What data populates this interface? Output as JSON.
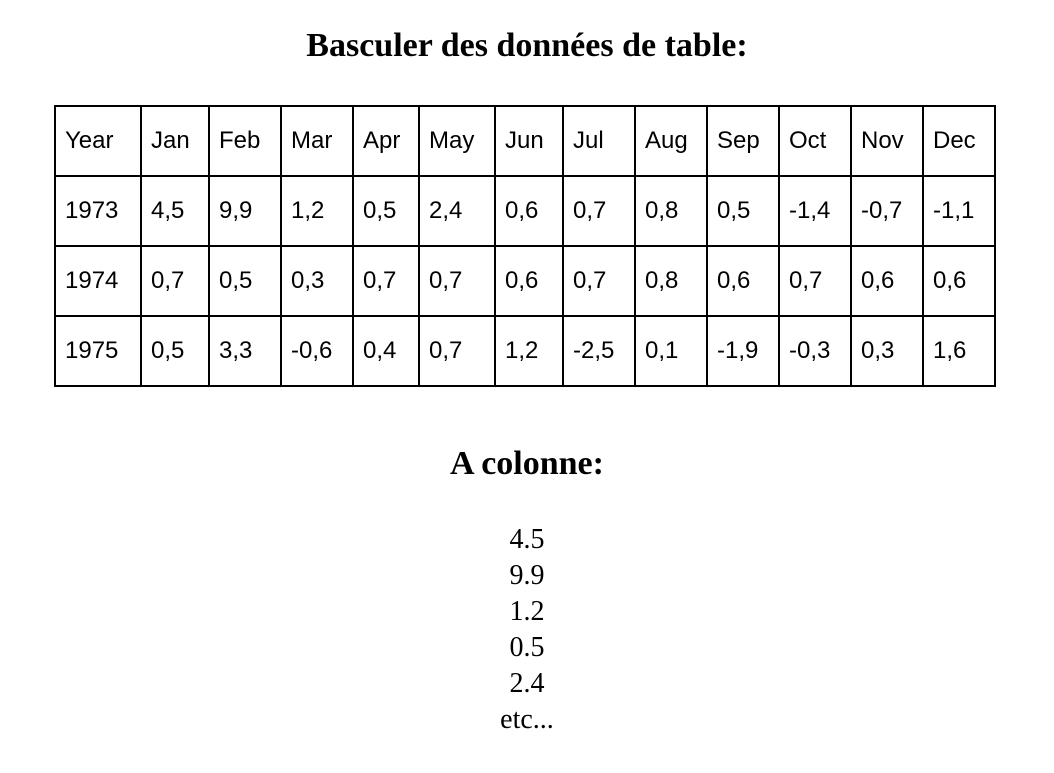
{
  "title": "Basculer des données de table:",
  "table": {
    "header": [
      "Year",
      "Jan",
      "Feb",
      "Mar",
      "Apr",
      "May",
      "Jun",
      "Jul",
      "Aug",
      "Sep",
      "Oct",
      "Nov",
      "Dec"
    ],
    "rows": [
      [
        "1973",
        "4,5",
        "9,9",
        "1,2",
        "0,5",
        "2,4",
        "0,6",
        "0,7",
        "0,8",
        "0,5",
        "-1,4",
        "-0,7",
        "-1,1"
      ],
      [
        "1974",
        "0,7",
        "0,5",
        "0,3",
        "0,7",
        "0,7",
        "0,6",
        "0,7",
        "0,8",
        "0,6",
        "0,7",
        "0,6",
        "0,6"
      ],
      [
        "1975",
        "0,5",
        "3,3",
        "-0,6",
        "0,4",
        "0,7",
        "1,2",
        "-2,5",
        "0,1",
        "-1,9",
        "-0,3",
        "0,3",
        "1,6"
      ]
    ]
  },
  "subtitle": "A colonne:",
  "column_values": [
    "4.5",
    "9.9",
    "1.2",
    "0.5",
    "2.4",
    "etc..."
  ]
}
